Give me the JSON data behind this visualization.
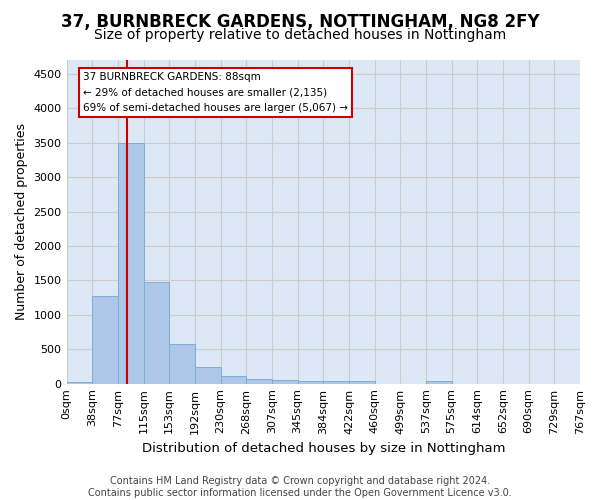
{
  "title": "37, BURNBRECK GARDENS, NOTTINGHAM, NG8 2FY",
  "subtitle": "Size of property relative to detached houses in Nottingham",
  "xlabel": "Distribution of detached houses by size in Nottingham",
  "ylabel": "Number of detached properties",
  "bar_values": [
    30,
    1270,
    3500,
    1480,
    570,
    240,
    110,
    75,
    50,
    45,
    45,
    45,
    0,
    0,
    45,
    0,
    0,
    0,
    0,
    0
  ],
  "tick_labels": [
    "0sqm",
    "38sqm",
    "77sqm",
    "115sqm",
    "153sqm",
    "192sqm",
    "230sqm",
    "268sqm",
    "307sqm",
    "345sqm",
    "384sqm",
    "422sqm",
    "460sqm",
    "499sqm",
    "537sqm",
    "575sqm",
    "614sqm",
    "652sqm",
    "690sqm",
    "729sqm",
    "767sqm"
  ],
  "bar_color": "#aec6e8",
  "bar_edge_color": "#7bafd4",
  "vline_x": 1.85,
  "vline_color": "#cc0000",
  "annotation_text_line1": "37 BURNBRECK GARDENS: 88sqm",
  "annotation_text_line2": "← 29% of detached houses are smaller (2,135)",
  "annotation_text_line3": "69% of semi-detached houses are larger (5,067) →",
  "annotation_color": "#cc0000",
  "ylim": [
    0,
    4700
  ],
  "yticks": [
    0,
    500,
    1000,
    1500,
    2000,
    2500,
    3000,
    3500,
    4000,
    4500
  ],
  "grid_color": "#cccccc",
  "bg_color": "#dce8f5",
  "footer_text": "Contains HM Land Registry data © Crown copyright and database right 2024.\nContains public sector information licensed under the Open Government Licence v3.0.",
  "title_fontsize": 12,
  "subtitle_fontsize": 10,
  "xlabel_fontsize": 9.5,
  "ylabel_fontsize": 9,
  "tick_fontsize": 8,
  "footer_fontsize": 7
}
